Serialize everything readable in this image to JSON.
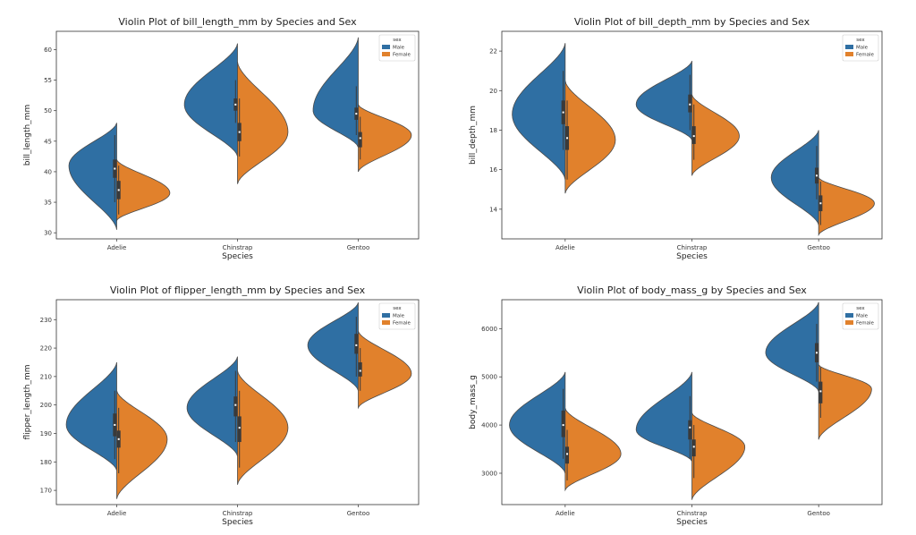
{
  "colors": {
    "male": "#2f6fa3",
    "female": "#e1812c",
    "outline": "#4a4a4a",
    "box": "#3a3a3a"
  },
  "chart_data": [
    {
      "type": "violin",
      "title": "Violin Plot of bill_length_mm by Species and Sex",
      "xlabel": "Species",
      "ylabel": "bill_length_mm",
      "ylim": [
        29,
        63
      ],
      "yticks": [
        30,
        35,
        40,
        45,
        50,
        55,
        60
      ],
      "categories": [
        "Adelie",
        "Chinstrap",
        "Gentoo"
      ],
      "legend_title": "sex",
      "legend_labels": [
        "Male",
        "Female"
      ],
      "series": [
        {
          "name": "Male",
          "violins": [
            {
              "min": 30.5,
              "max": 48,
              "peak": 41,
              "width": 0.9,
              "q1": 39,
              "median": 40.5,
              "q3": 42,
              "wmin": 35,
              "wmax": 46
            },
            {
              "min": 42.5,
              "max": 61,
              "peak": 51,
              "width": 1.0,
              "q1": 50,
              "median": 51,
              "q3": 52,
              "wmin": 48,
              "wmax": 55
            },
            {
              "min": 44,
              "max": 62,
              "peak": 50,
              "width": 0.85,
              "q1": 48.5,
              "median": 49.5,
              "q3": 50.5,
              "wmin": 46,
              "wmax": 54
            }
          ]
        },
        {
          "name": "Female",
          "violins": [
            {
              "min": 32,
              "max": 42,
              "peak": 36.5,
              "width": 1.0,
              "q1": 35.5,
              "median": 37,
              "q3": 38.5,
              "wmin": 33,
              "wmax": 41
            },
            {
              "min": 38,
              "max": 58,
              "peak": 46.5,
              "width": 0.95,
              "q1": 45,
              "median": 46.5,
              "q3": 48,
              "wmin": 42.5,
              "wmax": 52
            },
            {
              "min": 40,
              "max": 51,
              "peak": 46,
              "width": 1.0,
              "q1": 44,
              "median": 45.5,
              "q3": 46.5,
              "wmin": 42,
              "wmax": 49
            }
          ]
        }
      ]
    },
    {
      "type": "violin",
      "title": "Violin Plot of bill_depth_mm by Species and Sex",
      "xlabel": "Species",
      "ylabel": "bill_depth_mm",
      "ylim": [
        12.5,
        23
      ],
      "yticks": [
        14,
        16,
        18,
        20,
        22
      ],
      "categories": [
        "Adelie",
        "Chinstrap",
        "Gentoo"
      ],
      "legend_title": "sex",
      "legend_labels": [
        "Male",
        "Female"
      ],
      "series": [
        {
          "name": "Male",
          "violins": [
            {
              "min": 15.5,
              "max": 22.4,
              "peak": 18.8,
              "width": 0.95,
              "q1": 18.3,
              "median": 18.9,
              "q3": 19.5,
              "wmin": 17,
              "wmax": 21
            },
            {
              "min": 17.5,
              "max": 21.5,
              "peak": 19.3,
              "width": 1.0,
              "q1": 18.9,
              "median": 19.3,
              "q3": 19.8,
              "wmin": 18,
              "wmax": 20.8
            },
            {
              "min": 13.2,
              "max": 18,
              "peak": 15.6,
              "width": 0.85,
              "q1": 15.3,
              "median": 15.7,
              "q3": 16.1,
              "wmin": 14.5,
              "wmax": 17.2
            }
          ]
        },
        {
          "name": "Female",
          "violins": [
            {
              "min": 14.8,
              "max": 20.5,
              "peak": 17.5,
              "width": 0.9,
              "q1": 17,
              "median": 17.6,
              "q3": 18.2,
              "wmin": 15.5,
              "wmax": 19.5
            },
            {
              "min": 15.7,
              "max": 19.8,
              "peak": 17.7,
              "width": 0.85,
              "q1": 17.3,
              "median": 17.7,
              "q3": 18.2,
              "wmin": 16.5,
              "wmax": 19.3
            },
            {
              "min": 12.7,
              "max": 15.6,
              "peak": 14.3,
              "width": 1.0,
              "q1": 13.9,
              "median": 14.3,
              "q3": 14.7,
              "wmin": 13.2,
              "wmax": 15.4
            }
          ]
        }
      ]
    },
    {
      "type": "violin",
      "title": "Violin Plot of flipper_length_mm by Species and Sex",
      "xlabel": "Species",
      "ylabel": "flipper_length_mm",
      "ylim": [
        165,
        237
      ],
      "yticks": [
        170,
        180,
        190,
        200,
        210,
        220,
        230
      ],
      "categories": [
        "Adelie",
        "Chinstrap",
        "Gentoo"
      ],
      "legend_title": "sex",
      "legend_labels": [
        "Male",
        "Female"
      ],
      "series": [
        {
          "name": "Male",
          "violins": [
            {
              "min": 177,
              "max": 215,
              "peak": 193,
              "width": 0.95,
              "q1": 189,
              "median": 193,
              "q3": 197,
              "wmin": 181,
              "wmax": 205
            },
            {
              "min": 182,
              "max": 217,
              "peak": 199,
              "width": 0.95,
              "q1": 196,
              "median": 200,
              "q3": 203,
              "wmin": 187,
              "wmax": 212
            },
            {
              "min": 205,
              "max": 236,
              "peak": 221,
              "width": 0.95,
              "q1": 218,
              "median": 221,
              "q3": 225,
              "wmin": 210,
              "wmax": 231
            }
          ]
        },
        {
          "name": "Female",
          "violins": [
            {
              "min": 167,
              "max": 205,
              "peak": 188,
              "width": 0.95,
              "q1": 185,
              "median": 188,
              "q3": 191,
              "wmin": 176,
              "wmax": 199
            },
            {
              "min": 172,
              "max": 212,
              "peak": 192,
              "width": 0.95,
              "q1": 187,
              "median": 192,
              "q3": 196,
              "wmin": 178,
              "wmax": 205
            },
            {
              "min": 199,
              "max": 226,
              "peak": 211,
              "width": 1.0,
              "q1": 210,
              "median": 212,
              "q3": 215,
              "wmin": 205,
              "wmax": 220
            }
          ]
        }
      ]
    },
    {
      "type": "violin",
      "title": "Violin Plot of body_mass_g by Species and Sex",
      "xlabel": "Species",
      "ylabel": "body_mass_g",
      "ylim": [
        2350,
        6600
      ],
      "yticks": [
        3000,
        4000,
        5000,
        6000
      ],
      "categories": [
        "Adelie",
        "Chinstrap",
        "Gentoo"
      ],
      "legend_title": "sex",
      "legend_labels": [
        "Male",
        "Female"
      ],
      "series": [
        {
          "name": "Male",
          "violins": [
            {
              "min": 3000,
              "max": 5100,
              "peak": 4000,
              "width": 1.0,
              "q1": 3750,
              "median": 4000,
              "q3": 4300,
              "wmin": 3300,
              "wmax": 4750
            },
            {
              "min": 3250,
              "max": 5100,
              "peak": 3900,
              "width": 1.0,
              "q1": 3700,
              "median": 3950,
              "q3": 4100,
              "wmin": 3300,
              "wmax": 4600
            },
            {
              "min": 4700,
              "max": 6550,
              "peak": 5500,
              "width": 0.95,
              "q1": 5300,
              "median": 5500,
              "q3": 5700,
              "wmin": 4900,
              "wmax": 6100
            }
          ]
        },
        {
          "name": "Female",
          "violins": [
            {
              "min": 2650,
              "max": 4350,
              "peak": 3400,
              "width": 1.0,
              "q1": 3200,
              "median": 3400,
              "q3": 3550,
              "wmin": 2850,
              "wmax": 3900
            },
            {
              "min": 2450,
              "max": 4250,
              "peak": 3550,
              "width": 0.95,
              "q1": 3350,
              "median": 3550,
              "q3": 3700,
              "wmin": 2900,
              "wmax": 4000
            },
            {
              "min": 3700,
              "max": 5250,
              "peak": 4750,
              "width": 0.95,
              "q1": 4450,
              "median": 4700,
              "q3": 4900,
              "wmin": 4150,
              "wmax": 5200
            }
          ]
        }
      ]
    }
  ]
}
